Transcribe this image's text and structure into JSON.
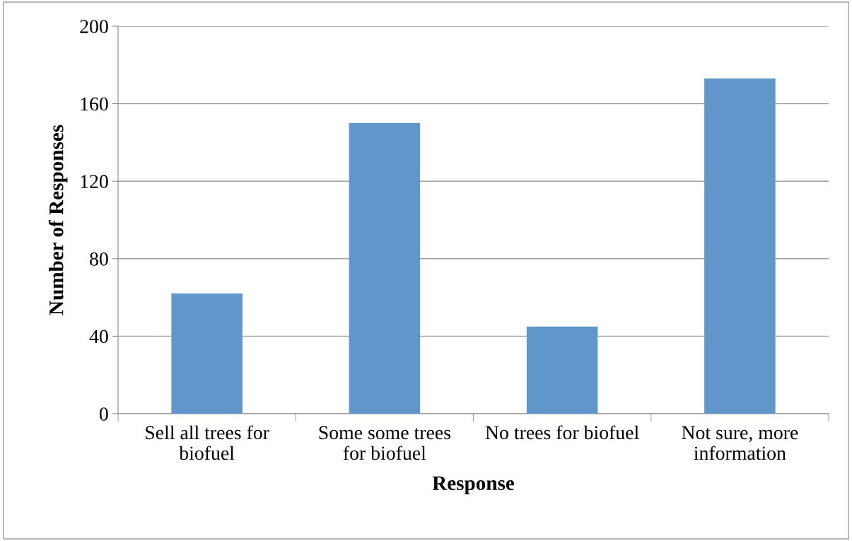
{
  "chart_data": {
    "type": "bar",
    "xlabel": "Response",
    "ylabel": "Number of Responses",
    "categories": [
      "Sell all trees for\nbiofuel",
      "Some some trees\nfor biofuel",
      "No trees for biofuel",
      "Not sure, more\ninformation"
    ],
    "values": [
      62,
      150,
      45,
      173
    ],
    "color": "#6096c9",
    "ylim": [
      0,
      200
    ],
    "yticks": [
      0,
      40,
      80,
      120,
      160,
      200
    ],
    "grid": "y",
    "legend": false
  }
}
